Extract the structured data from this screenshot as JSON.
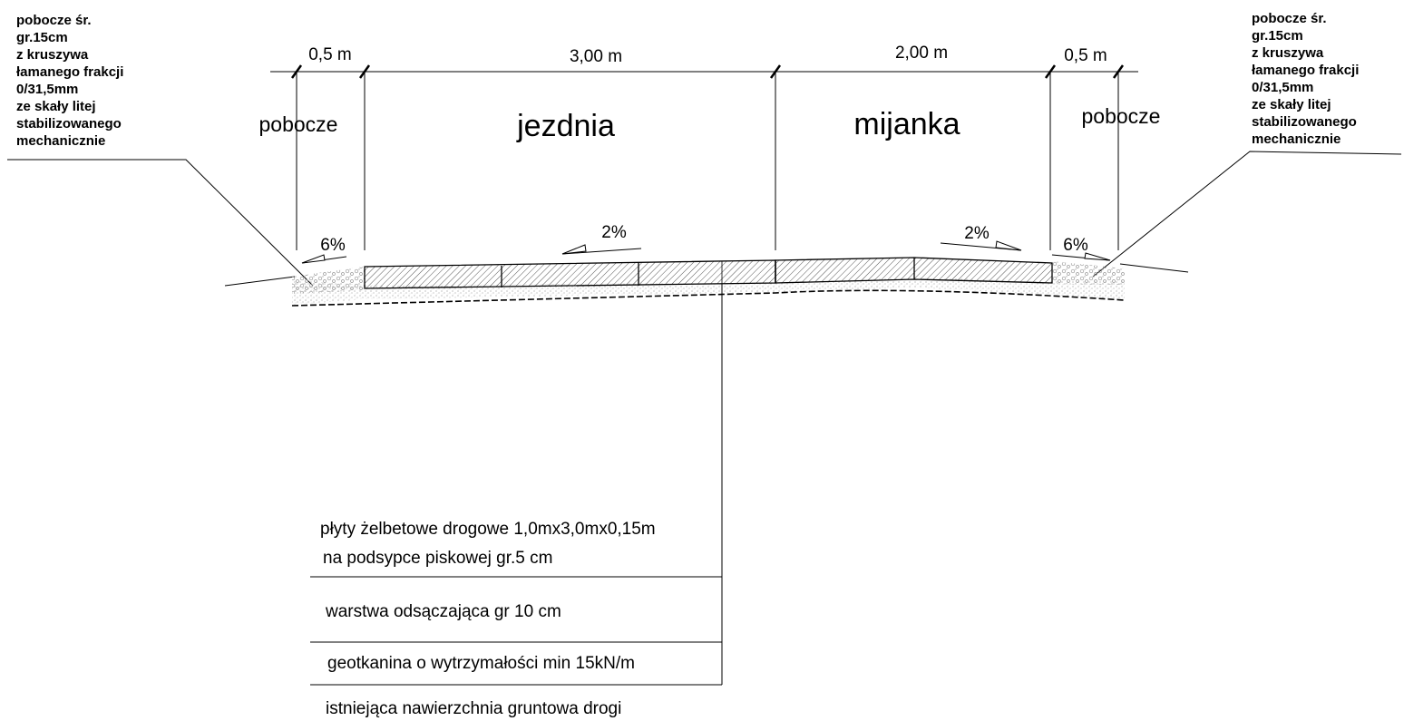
{
  "left_note": [
    "pobocze śr.",
    "gr.15cm",
    "z kruszywa",
    "łamanego frakcji",
    "0/31,5mm",
    "ze skały litej",
    "stabilizowanego",
    "mechanicznie"
  ],
  "right_note": [
    "pobocze śr.",
    "gr.15cm",
    "z kruszywa",
    "łamanego frakcji",
    "0/31,5mm",
    "ze skały litej",
    "stabilizowanego",
    "mechanicznie"
  ],
  "dimensions": {
    "left_shoulder": "0,5 m",
    "roadway": "3,00 m",
    "passing_bay": "2,00 m",
    "right_shoulder": "0,5 m"
  },
  "zones": {
    "left_shoulder": "pobocze",
    "roadway": "jezdnia",
    "passing_bay": "mijanka",
    "right_shoulder": "pobocze"
  },
  "slopes": {
    "left_shoulder": "6%",
    "roadway": "2%",
    "passing_bay": "2%",
    "right_shoulder": "6%"
  },
  "layers": [
    "płyty żelbetowe drogowe 1,0mx3,0mx0,15m",
    "na podsypce piskowej gr.5 cm",
    "warstwa odsączająca gr 10 cm",
    "geotkanina o wytrzymałości min 15kN/m",
    "istniejąca nawierzchnia gruntowa drogi"
  ]
}
